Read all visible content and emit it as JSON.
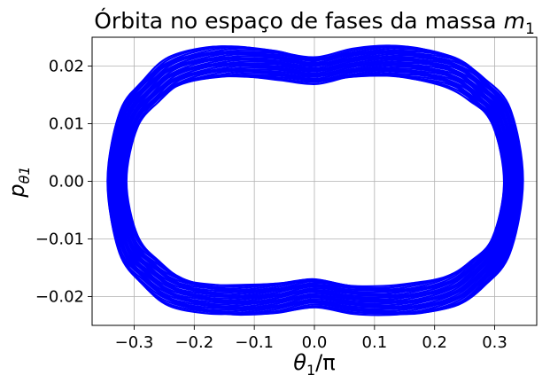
{
  "chart_data": {
    "type": "line",
    "title": "Órbita no espaço de fases da massa",
    "title_symbol": "m",
    "title_symbol_sub": "1",
    "xlabel": "θ",
    "xlabel_sub": "1",
    "xlabel_suffix": "/π",
    "ylabel": "p",
    "ylabel_sub": "θ1",
    "xlim": [
      -0.37,
      0.37
    ],
    "ylim": [
      -0.025,
      0.025
    ],
    "xticks": [
      -0.3,
      -0.2,
      -0.1,
      0.0,
      0.1,
      0.2,
      0.3
    ],
    "xtick_labels": [
      "−0.3",
      "−0.2",
      "−0.1",
      "0.0",
      "0.1",
      "0.2",
      "0.3"
    ],
    "yticks": [
      -0.02,
      -0.01,
      0.0,
      0.01,
      0.02
    ],
    "ytick_labels": [
      "−0.02",
      "−0.01",
      "0.00",
      "0.01",
      "0.02"
    ],
    "grid": true,
    "line_color": "#0000ff",
    "series": [
      {
        "style": "dense-orbit",
        "points": [
          [
            -0.33,
            0.0
          ],
          [
            -0.31,
            0.011
          ],
          [
            -0.27,
            0.016
          ],
          [
            -0.23,
            0.019
          ],
          [
            -0.17,
            0.0205
          ],
          [
            -0.12,
            0.0208
          ],
          [
            -0.06,
            0.0203
          ],
          [
            0.0,
            0.0193
          ],
          [
            0.06,
            0.0203
          ],
          [
            0.12,
            0.0208
          ],
          [
            0.17,
            0.0205
          ],
          [
            0.23,
            0.019
          ],
          [
            0.27,
            0.016
          ],
          [
            0.31,
            0.011
          ],
          [
            0.33,
            0.0
          ],
          [
            0.31,
            -0.011
          ],
          [
            0.27,
            -0.016
          ],
          [
            0.23,
            -0.019
          ],
          [
            0.17,
            -0.0205
          ],
          [
            0.12,
            -0.0208
          ],
          [
            0.06,
            -0.0203
          ],
          [
            0.0,
            -0.0193
          ],
          [
            -0.06,
            -0.0203
          ],
          [
            -0.12,
            -0.0208
          ],
          [
            -0.17,
            -0.0205
          ],
          [
            -0.23,
            -0.019
          ],
          [
            -0.27,
            -0.016
          ],
          [
            -0.31,
            -0.011
          ]
        ]
      }
    ]
  }
}
